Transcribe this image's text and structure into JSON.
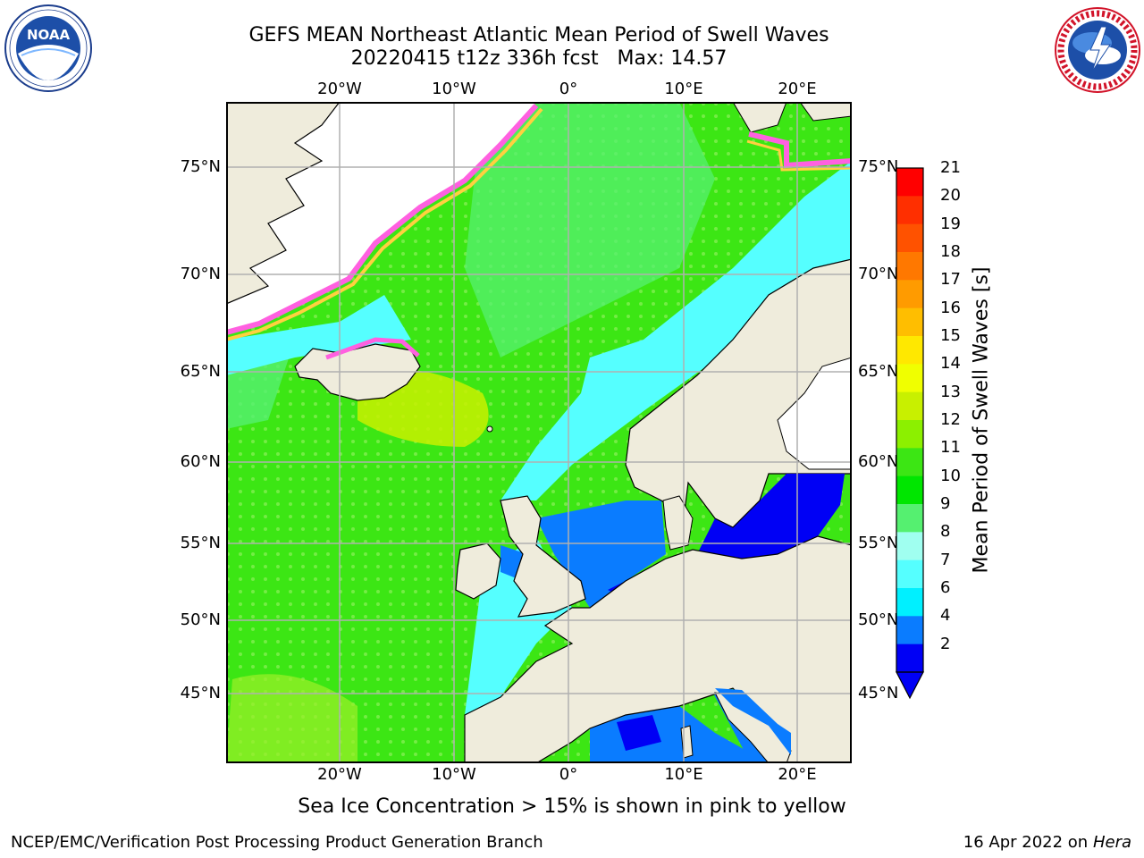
{
  "header": {
    "title_line1": "GEFS MEAN Northeast Atlantic Mean Period of Swell Waves",
    "title_line2": "20220415 t12z 336h fcst   Max: 14.57"
  },
  "logos": {
    "left": "NOAA",
    "left_ring_text": "NATIONAL OCEANIC AND ATMOSPHERIC ADMINISTRATION · U.S. DEPARTMENT OF COMMERCE",
    "right_ring_text": "NATIONAL WEATHER SERVICE"
  },
  "map": {
    "lon_labels": [
      "20°W",
      "10°W",
      "0°",
      "10°E",
      "20°E"
    ],
    "lat_labels": [
      "75°N",
      "70°N",
      "65°N",
      "60°N",
      "55°N",
      "50°N",
      "45°N"
    ],
    "land_color": "#efecdc",
    "ocean_colors": {
      "deep_blue": "#0000f5",
      "blue": "#0a7cff",
      "cyan": "#00f0ff",
      "light_cyan": "#55ffff",
      "pale_cyan": "#a0fff0",
      "light_green": "#55f070",
      "green": "#28e628",
      "yellow_green": "#c8f000"
    }
  },
  "colorbar": {
    "title": "Mean Period of Swell Waves [s]",
    "labels": [
      "21",
      "20",
      "19",
      "18",
      "17",
      "16",
      "15",
      "14",
      "13",
      "12",
      "11",
      "10",
      "9",
      "8",
      "7",
      "6",
      "4",
      "2"
    ],
    "colors": [
      "#ff0000",
      "#ff2f00",
      "#ff5200",
      "#ff7800",
      "#ff9b00",
      "#ffbe00",
      "#ffe800",
      "#f0ff00",
      "#c8f000",
      "#8cf000",
      "#3ce614",
      "#00e600",
      "#55f070",
      "#a0fff0",
      "#55ffff",
      "#00f0ff",
      "#0a7cff",
      "#0000f5"
    ]
  },
  "footnote": "Sea Ice Concentration > 15% is shown in pink to yellow",
  "footer": {
    "left": "NCEP/EMC/Verification Post Processing Product Generation Branch",
    "date": "16 Apr 2022 on ",
    "machine": "Hera"
  }
}
